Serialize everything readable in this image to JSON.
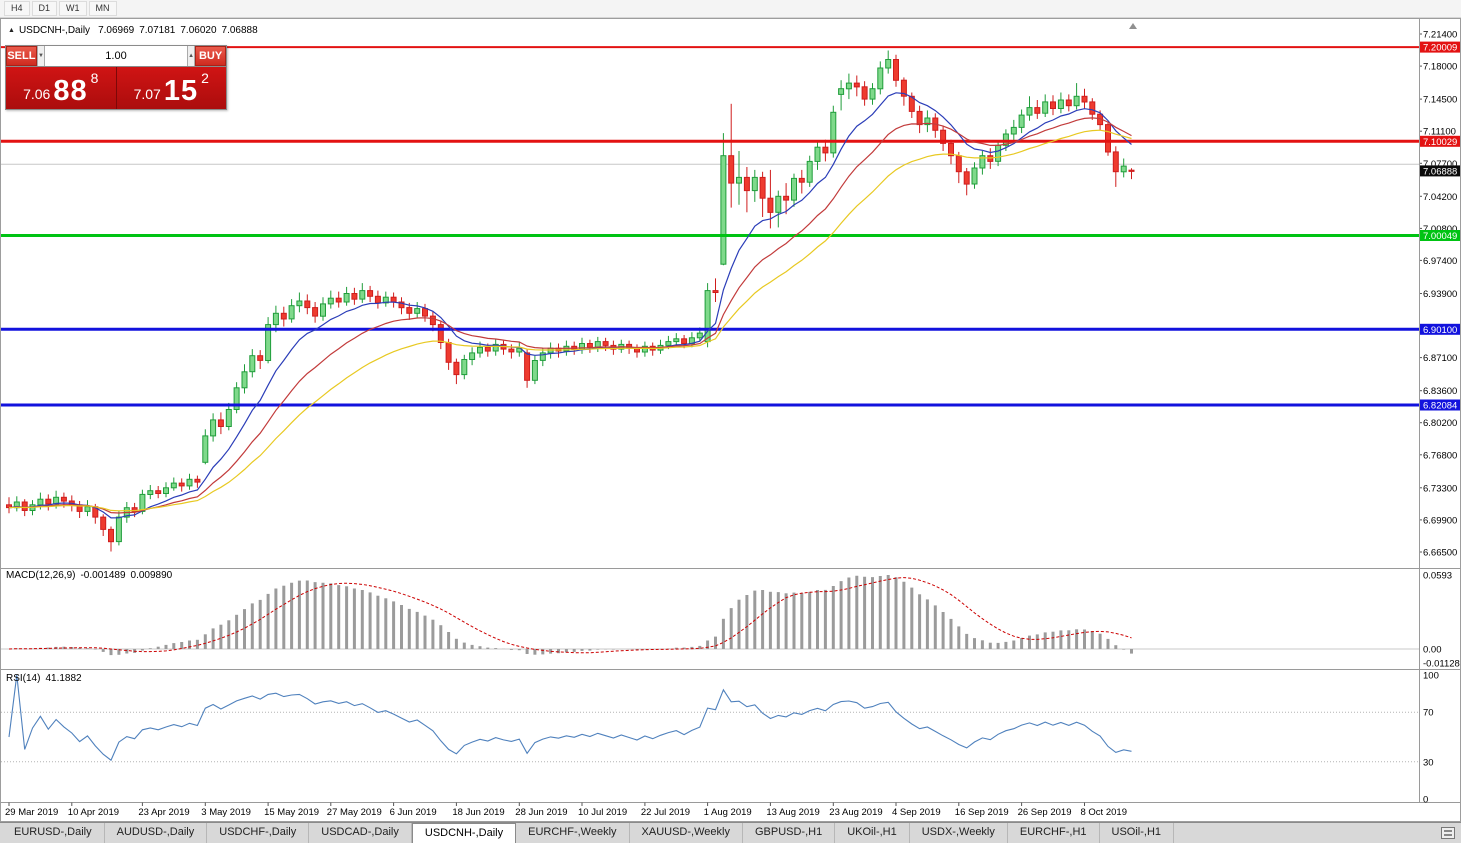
{
  "toolbar": {
    "timeframes": [
      {
        "id": "h4",
        "label": "H4"
      },
      {
        "id": "d1",
        "label": "D1"
      },
      {
        "id": "w1",
        "label": "W1"
      },
      {
        "id": "mn",
        "label": "MN"
      }
    ]
  },
  "window": {
    "title_icon": "▲",
    "symbol_title": "USDCNH-,Daily",
    "ohlc": {
      "open": "7.06969",
      "high": "7.07181",
      "low": "7.06020",
      "close": "7.06888"
    }
  },
  "trade_widget": {
    "sell_label": "SELL",
    "buy_label": "BUY",
    "volume_value": "1.00",
    "volume_down_glyph": "▼",
    "volume_up_glyph": "▲",
    "sell_price": {
      "base": "7.06",
      "pips": "88",
      "pip_fraction": "8"
    },
    "buy_price": {
      "base": "7.07",
      "pips": "15",
      "pip_fraction": "2"
    },
    "panel_red": "#c01010"
  },
  "price_axis": {
    "ticks": [
      "7.21400",
      "7.18000",
      "7.14500",
      "7.11100",
      "7.07700",
      "7.04200",
      "7.00800",
      "6.97400",
      "6.93900",
      "6.87100",
      "6.83600",
      "6.80200",
      "6.76800",
      "6.73300",
      "6.69900",
      "6.66500"
    ]
  },
  "chart_data": {
    "type": "candlestick",
    "symbol": "USDCNH",
    "timeframe": "Daily",
    "price_range": {
      "top": 7.214,
      "bottom": 6.665
    },
    "colors": {
      "up": "#1f9d3a",
      "up_fill": "#7fd98b",
      "down": "#cf1d1d",
      "down_fill": "#ee3b2f"
    },
    "plain_lines": [
      {
        "value": 7.076,
        "color": "#c7c7c7",
        "width": 1
      }
    ],
    "level_lines": [
      {
        "text": "7.20009",
        "value": 7.20009,
        "color": "#e31212",
        "line": true,
        "width": 2
      },
      {
        "text": "7.10029",
        "value": 7.10029,
        "color": "#e31212",
        "line": true,
        "width": 3
      },
      {
        "text": "7.00049",
        "value": 7.00049,
        "color": "#00c313",
        "line": true,
        "width": 3
      },
      {
        "text": "6.90100",
        "value": 6.901,
        "color": "#1212dd",
        "line": true,
        "width": 3
      },
      {
        "text": "6.82084",
        "value": 6.82084,
        "color": "#1212dd",
        "line": true,
        "width": 3
      }
    ],
    "bid": {
      "text": "7.06888",
      "value": 7.06888,
      "color": "#0a0a0a"
    },
    "moving_averages": [
      {
        "type": "ema",
        "period": 9,
        "color": "#2b3db8"
      },
      {
        "type": "ema",
        "period": 18,
        "color": "#c23b3b"
      },
      {
        "type": "ema",
        "period": 30,
        "color": "#e8c922"
      }
    ],
    "x_ticks": [
      {
        "label": "29 Mar 2019",
        "index": 0
      },
      {
        "label": "10 Apr 2019",
        "index": 8
      },
      {
        "label": "23 Apr 2019",
        "index": 17
      },
      {
        "label": "3 May 2019",
        "index": 25
      },
      {
        "label": "15 May 2019",
        "index": 33
      },
      {
        "label": "27 May 2019",
        "index": 41
      },
      {
        "label": "6 Jun 2019",
        "index": 49
      },
      {
        "label": "18 Jun 2019",
        "index": 57
      },
      {
        "label": "28 Jun 2019",
        "index": 65
      },
      {
        "label": "10 Jul 2019",
        "index": 73
      },
      {
        "label": "22 Jul 2019",
        "index": 81
      },
      {
        "label": "1 Aug 2019",
        "index": 89
      },
      {
        "label": "13 Aug 2019",
        "index": 97
      },
      {
        "label": "23 Aug 2019",
        "index": 105
      },
      {
        "label": "4 Sep 2019",
        "index": 113
      },
      {
        "label": "16 Sep 2019",
        "index": 121
      },
      {
        "label": "26 Sep 2019",
        "index": 129
      },
      {
        "label": "8 Oct 2019",
        "index": 137
      }
    ],
    "candles": [
      [
        6.715,
        6.723,
        6.706,
        6.712
      ],
      [
        6.712,
        6.724,
        6.708,
        6.718
      ],
      [
        6.718,
        6.721,
        6.703,
        6.709
      ],
      [
        6.709,
        6.72,
        6.704,
        6.715
      ],
      [
        6.715,
        6.728,
        6.71,
        6.721
      ],
      [
        6.721,
        6.726,
        6.709,
        6.716
      ],
      [
        6.716,
        6.73,
        6.711,
        6.723
      ],
      [
        6.723,
        6.728,
        6.712,
        6.719
      ],
      [
        6.719,
        6.725,
        6.708,
        6.715
      ],
      [
        6.715,
        6.719,
        6.701,
        6.708
      ],
      [
        6.708,
        6.72,
        6.703,
        6.713
      ],
      [
        6.713,
        6.716,
        6.695,
        6.702
      ],
      [
        6.702,
        6.705,
        6.682,
        6.689
      ],
      [
        6.689,
        6.692,
        6.6655,
        6.676
      ],
      [
        6.676,
        6.708,
        6.672,
        6.702
      ],
      [
        6.702,
        6.718,
        6.696,
        6.712
      ],
      [
        6.712,
        6.717,
        6.702,
        6.708
      ],
      [
        6.708,
        6.731,
        6.705,
        6.726
      ],
      [
        6.726,
        6.736,
        6.721,
        6.73
      ],
      [
        6.73,
        6.735,
        6.722,
        6.727
      ],
      [
        6.727,
        6.739,
        6.723,
        6.733
      ],
      [
        6.733,
        6.744,
        6.73,
        6.738
      ],
      [
        6.738,
        6.743,
        6.729,
        6.735
      ],
      [
        6.735,
        6.748,
        6.731,
        6.742
      ],
      [
        6.742,
        6.746,
        6.733,
        6.739
      ],
      [
        6.76,
        6.795,
        6.758,
        6.788
      ],
      [
        6.788,
        6.812,
        6.782,
        6.805
      ],
      [
        6.805,
        6.813,
        6.79,
        6.798
      ],
      [
        6.798,
        6.823,
        6.794,
        6.816
      ],
      [
        6.816,
        6.845,
        6.812,
        6.839
      ],
      [
        6.839,
        6.864,
        6.833,
        6.856
      ],
      [
        6.856,
        6.88,
        6.85,
        6.873
      ],
      [
        6.873,
        6.879,
        6.859,
        6.868
      ],
      [
        6.868,
        6.914,
        6.865,
        6.906
      ],
      [
        6.906,
        6.926,
        6.898,
        6.918
      ],
      [
        6.918,
        6.925,
        6.904,
        6.912
      ],
      [
        6.912,
        6.933,
        6.908,
        6.926
      ],
      [
        6.926,
        6.94,
        6.919,
        6.931
      ],
      [
        6.931,
        6.938,
        6.917,
        6.924
      ],
      [
        6.924,
        6.93,
        6.908,
        6.915
      ],
      [
        6.915,
        6.935,
        6.91,
        6.928
      ],
      [
        6.928,
        6.942,
        6.923,
        6.934
      ],
      [
        6.934,
        6.941,
        6.924,
        6.93
      ],
      [
        6.93,
        6.946,
        6.926,
        6.939
      ],
      [
        6.939,
        6.945,
        6.927,
        6.933
      ],
      [
        6.933,
        6.95,
        6.929,
        6.942
      ],
      [
        6.942,
        6.947,
        6.93,
        6.936
      ],
      [
        6.936,
        6.942,
        6.923,
        6.929
      ],
      [
        6.929,
        6.941,
        6.925,
        6.935
      ],
      [
        6.935,
        6.94,
        6.924,
        6.93
      ],
      [
        6.93,
        6.935,
        6.917,
        6.924
      ],
      [
        6.924,
        6.929,
        6.911,
        6.918
      ],
      [
        6.918,
        6.93,
        6.913,
        6.923
      ],
      [
        6.923,
        6.928,
        6.909,
        6.915
      ],
      [
        6.915,
        6.92,
        6.899,
        6.906
      ],
      [
        6.906,
        6.91,
        6.88,
        6.887
      ],
      [
        6.887,
        6.891,
        6.858,
        6.866
      ],
      [
        6.866,
        6.87,
        6.843,
        6.853
      ],
      [
        6.853,
        6.874,
        6.848,
        6.869
      ],
      [
        6.869,
        6.882,
        6.863,
        6.876
      ],
      [
        6.876,
        6.888,
        6.871,
        6.882
      ],
      [
        6.882,
        6.886,
        6.872,
        6.878
      ],
      [
        6.878,
        6.891,
        6.873,
        6.885
      ],
      [
        6.885,
        6.889,
        6.874,
        6.88
      ],
      [
        6.88,
        6.885,
        6.87,
        6.877
      ],
      [
        6.877,
        6.887,
        6.872,
        6.881
      ],
      [
        6.876,
        6.88,
        6.839,
        6.847
      ],
      [
        6.847,
        6.873,
        6.843,
        6.868
      ],
      [
        6.868,
        6.881,
        6.862,
        6.876
      ],
      [
        6.876,
        6.887,
        6.87,
        6.881
      ],
      [
        6.881,
        6.886,
        6.871,
        6.878
      ],
      [
        6.878,
        6.889,
        6.873,
        6.883
      ],
      [
        6.883,
        6.888,
        6.874,
        6.88
      ],
      [
        6.88,
        6.892,
        6.875,
        6.886
      ],
      [
        6.886,
        6.89,
        6.876,
        6.882
      ],
      [
        6.882,
        6.893,
        6.877,
        6.888
      ],
      [
        6.888,
        6.892,
        6.878,
        6.884
      ],
      [
        6.884,
        6.889,
        6.874,
        6.88
      ],
      [
        6.88,
        6.89,
        6.876,
        6.885
      ],
      [
        6.885,
        6.889,
        6.875,
        6.881
      ],
      [
        6.881,
        6.885,
        6.871,
        6.877
      ],
      [
        6.877,
        6.888,
        6.872,
        6.883
      ],
      [
        6.883,
        6.887,
        6.873,
        6.879
      ],
      [
        6.879,
        6.89,
        6.875,
        6.884
      ],
      [
        6.884,
        6.894,
        6.88,
        6.888
      ],
      [
        6.888,
        6.897,
        6.884,
        6.891
      ],
      [
        6.891,
        6.895,
        6.881,
        6.886
      ],
      [
        6.886,
        6.898,
        6.882,
        6.892
      ],
      [
        6.892,
        6.903,
        6.888,
        6.897
      ],
      [
        6.888,
        6.95,
        6.882,
        6.942
      ],
      [
        6.942,
        6.955,
        6.93,
        6.94
      ],
      [
        6.97,
        7.109,
        6.969,
        7.085
      ],
      [
        7.085,
        7.14,
        7.03,
        7.056
      ],
      [
        7.056,
        7.09,
        7.033,
        7.062
      ],
      [
        7.062,
        7.073,
        7.025,
        7.048
      ],
      [
        7.048,
        7.07,
        7.036,
        7.062
      ],
      [
        7.062,
        7.068,
        7.02,
        7.04
      ],
      [
        7.04,
        7.07,
        7.008,
        7.025
      ],
      [
        7.025,
        7.048,
        7.009,
        7.042
      ],
      [
        7.042,
        7.056,
        7.023,
        7.038
      ],
      [
        7.038,
        7.066,
        7.031,
        7.061
      ],
      [
        7.061,
        7.07,
        7.045,
        7.057
      ],
      [
        7.057,
        7.085,
        7.052,
        7.079
      ],
      [
        7.079,
        7.099,
        7.07,
        7.094
      ],
      [
        7.094,
        7.102,
        7.079,
        7.088
      ],
      [
        7.088,
        7.138,
        7.083,
        7.131
      ],
      [
        7.15,
        7.165,
        7.133,
        7.156
      ],
      [
        7.156,
        7.172,
        7.145,
        7.162
      ],
      [
        7.162,
        7.17,
        7.148,
        7.158
      ],
      [
        7.158,
        7.164,
        7.138,
        7.145
      ],
      [
        7.145,
        7.162,
        7.139,
        7.156
      ],
      [
        7.156,
        7.185,
        7.15,
        7.178
      ],
      [
        7.178,
        7.1965,
        7.172,
        7.187
      ],
      [
        7.187,
        7.192,
        7.158,
        7.165
      ],
      [
        7.165,
        7.168,
        7.138,
        7.148
      ],
      [
        7.148,
        7.152,
        7.125,
        7.132
      ],
      [
        7.132,
        7.138,
        7.109,
        7.118
      ],
      [
        7.118,
        7.133,
        7.11,
        7.125
      ],
      [
        7.125,
        7.13,
        7.104,
        7.112
      ],
      [
        7.112,
        7.116,
        7.09,
        7.098
      ],
      [
        7.098,
        7.102,
        7.076,
        7.085
      ],
      [
        7.085,
        7.089,
        7.056,
        7.068
      ],
      [
        7.068,
        7.072,
        7.043,
        7.055
      ],
      [
        7.055,
        7.078,
        7.05,
        7.072
      ],
      [
        7.072,
        7.09,
        7.065,
        7.085
      ],
      [
        7.085,
        7.093,
        7.071,
        7.079
      ],
      [
        7.079,
        7.101,
        7.074,
        7.096
      ],
      [
        7.096,
        7.113,
        7.09,
        7.108
      ],
      [
        7.108,
        7.123,
        7.101,
        7.115
      ],
      [
        7.115,
        7.134,
        7.109,
        7.128
      ],
      [
        7.128,
        7.148,
        7.122,
        7.136
      ],
      [
        7.136,
        7.144,
        7.124,
        7.13
      ],
      [
        7.13,
        7.15,
        7.126,
        7.142
      ],
      [
        7.142,
        7.149,
        7.128,
        7.135
      ],
      [
        7.135,
        7.152,
        7.13,
        7.144
      ],
      [
        7.144,
        7.15,
        7.132,
        7.138
      ],
      [
        7.138,
        7.162,
        7.134,
        7.148
      ],
      [
        7.148,
        7.156,
        7.135,
        7.142
      ],
      [
        7.142,
        7.146,
        7.123,
        7.129
      ],
      [
        7.129,
        7.133,
        7.112,
        7.118
      ],
      [
        7.118,
        7.121,
        7.085,
        7.089
      ],
      [
        7.089,
        7.095,
        7.052,
        7.068
      ],
      [
        7.068,
        7.082,
        7.062,
        7.074
      ],
      [
        7.06969,
        7.07181,
        7.0602,
        7.06888
      ]
    ],
    "macd": {
      "fast": 12,
      "slow": 26,
      "signal": 9,
      "name": "MACD(12,26,9)",
      "value_main": "-0.001489",
      "value_signal": "0.009890",
      "axis_ticks": [
        "0.0593",
        "0.00",
        "-0.011289"
      ],
      "range": {
        "top": 0.0593,
        "bottom": -0.011289
      }
    },
    "rsi": {
      "period": 14,
      "name": "RSI(14)",
      "value": "41.1882",
      "levels": [
        70,
        30
      ],
      "axis_ticks": [
        "100",
        "70",
        "30",
        "0"
      ],
      "range": {
        "top": 100,
        "bottom": 0
      }
    }
  },
  "tab_bar": {
    "tabs": [
      {
        "label": "EURUSD-,Daily",
        "active": false
      },
      {
        "label": "AUDUSD-,Daily",
        "active": false
      },
      {
        "label": "USDCHF-,Daily",
        "active": false
      },
      {
        "label": "USDCAD-,Daily",
        "active": false
      },
      {
        "label": "USDCNH-,Daily",
        "active": true
      },
      {
        "label": "EURCHF-,Weekly",
        "active": false
      },
      {
        "label": "XAUUSD-,Weekly",
        "active": false
      },
      {
        "label": "GBPUSD-,H1",
        "active": false
      },
      {
        "label": "UKOil-,H1",
        "active": false
      },
      {
        "label": "USDX-,Weekly",
        "active": false
      },
      {
        "label": "EURCHF-,H1",
        "active": false
      },
      {
        "label": "USOil-,H1",
        "active": false
      }
    ]
  }
}
